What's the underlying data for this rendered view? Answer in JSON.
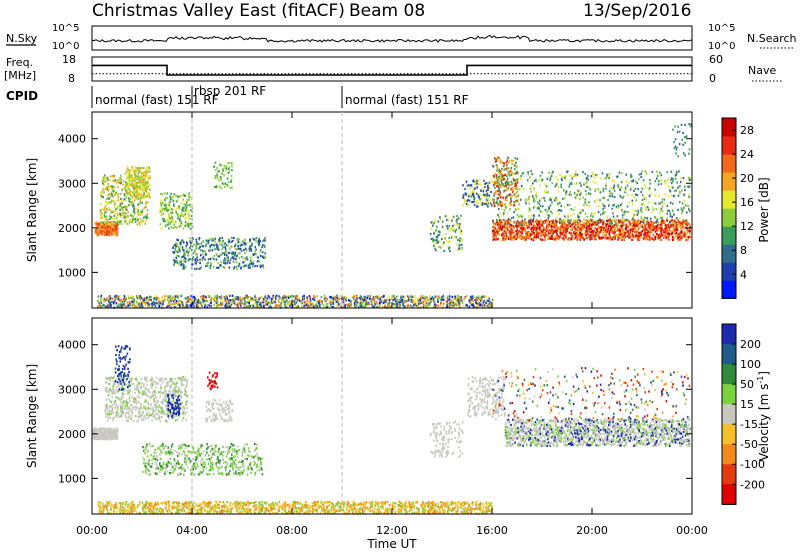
{
  "header": {
    "title": "Christmas Valley East (fitACF)",
    "beam": "Beam 08",
    "date": "13/Sep/2016"
  },
  "chart_data": [
    {
      "type": "line",
      "name": "noise-panel",
      "left_label": "N.Sky",
      "right_label": "N.Search",
      "left_ticks": [
        "10^5",
        "10^0"
      ],
      "right_ticks": [
        "10^5",
        "10^0"
      ]
    },
    {
      "type": "line",
      "name": "freq-panel",
      "left_label_1": "Freq.",
      "left_label_2": "[MHz]",
      "right_label": "Nave",
      "left_ticks": [
        18,
        8
      ],
      "right_ticks": [
        60,
        0
      ],
      "freq_mhz": {
        "x_hours": [
          0,
          3,
          3,
          15,
          15,
          24
        ],
        "y": [
          14.5,
          14.5,
          10.5,
          10.5,
          14.5,
          14.5
        ]
      },
      "nave": {
        "x_hours": [
          0,
          24
        ],
        "y": [
          11,
          11
        ]
      }
    },
    {
      "type": "table",
      "name": "cpid-strip",
      "label": "CPID",
      "entries": [
        {
          "text": "normal (fast) 151 RF",
          "start_hour": 0
        },
        {
          "text": "rbsp 201 RF",
          "start_hour": 4
        },
        {
          "text": "normal (fast) 151 RF",
          "start_hour": 10
        }
      ]
    },
    {
      "type": "heatmap",
      "name": "power",
      "ylabel": "Slant Range [km]",
      "yticks": [
        1000,
        2000,
        3000,
        4000
      ],
      "ylim": [
        200,
        4600
      ],
      "xlim_hours": [
        0,
        24
      ],
      "colorbar_label": "Power [dB]",
      "colorbar_ticks": [
        4,
        8,
        12,
        16,
        20,
        24,
        28
      ],
      "colorbar_colors": [
        "#0018ff",
        "#1f3fb0",
        "#2f6e8a",
        "#3b9e5a",
        "#8ccd3c",
        "#e6e82a",
        "#f5a623",
        "#f06a1a",
        "#e82a12",
        "#cc0000"
      ]
    },
    {
      "type": "heatmap",
      "name": "velocity",
      "ylabel": "Slant Range [km]",
      "yticks": [
        1000,
        2000,
        3000,
        4000
      ],
      "ylim": [
        200,
        4600
      ],
      "xlim_hours": [
        0,
        24
      ],
      "xlabel": "Time UT",
      "xticks": [
        "00:00",
        "04:00",
        "08:00",
        "12:00",
        "16:00",
        "20:00",
        "00:00"
      ],
      "colorbar_label": "Velocity [m s",
      "colorbar_sup": "-1",
      "colorbar_ticks": [
        200,
        100,
        50,
        15,
        -15,
        -50,
        -100,
        -200
      ],
      "colorbar_colors": [
        "#1a2bb0",
        "#1e5a8a",
        "#2f8a3a",
        "#7ad23c",
        "#c8c8c0",
        "#f5c02a",
        "#f58a1a",
        "#e83a10",
        "#e00000"
      ]
    }
  ]
}
